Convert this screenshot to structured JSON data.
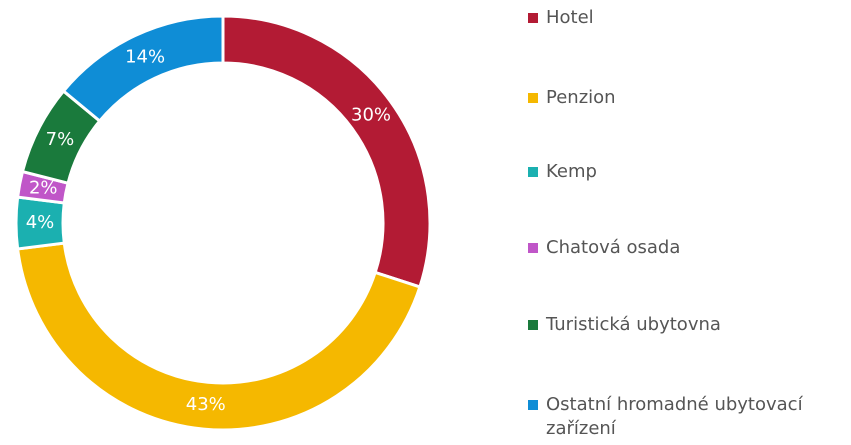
{
  "chart_data": {
    "type": "donut",
    "categories": [
      "Hotel",
      "Penzion",
      "Kemp",
      "Chatová osada",
      "Turistická ubytovna",
      "Ostatní hromadné ubytovací zařízení"
    ],
    "values": [
      30,
      43,
      4,
      2,
      7,
      14
    ],
    "value_labels": [
      "30%",
      "43%",
      "4%",
      "2%",
      "7%",
      "14%"
    ],
    "colors": [
      "#b31b34",
      "#f5b800",
      "#1bb0b0",
      "#c056c8",
      "#1a7a3c",
      "#0f8dd6"
    ],
    "legend": "right"
  }
}
